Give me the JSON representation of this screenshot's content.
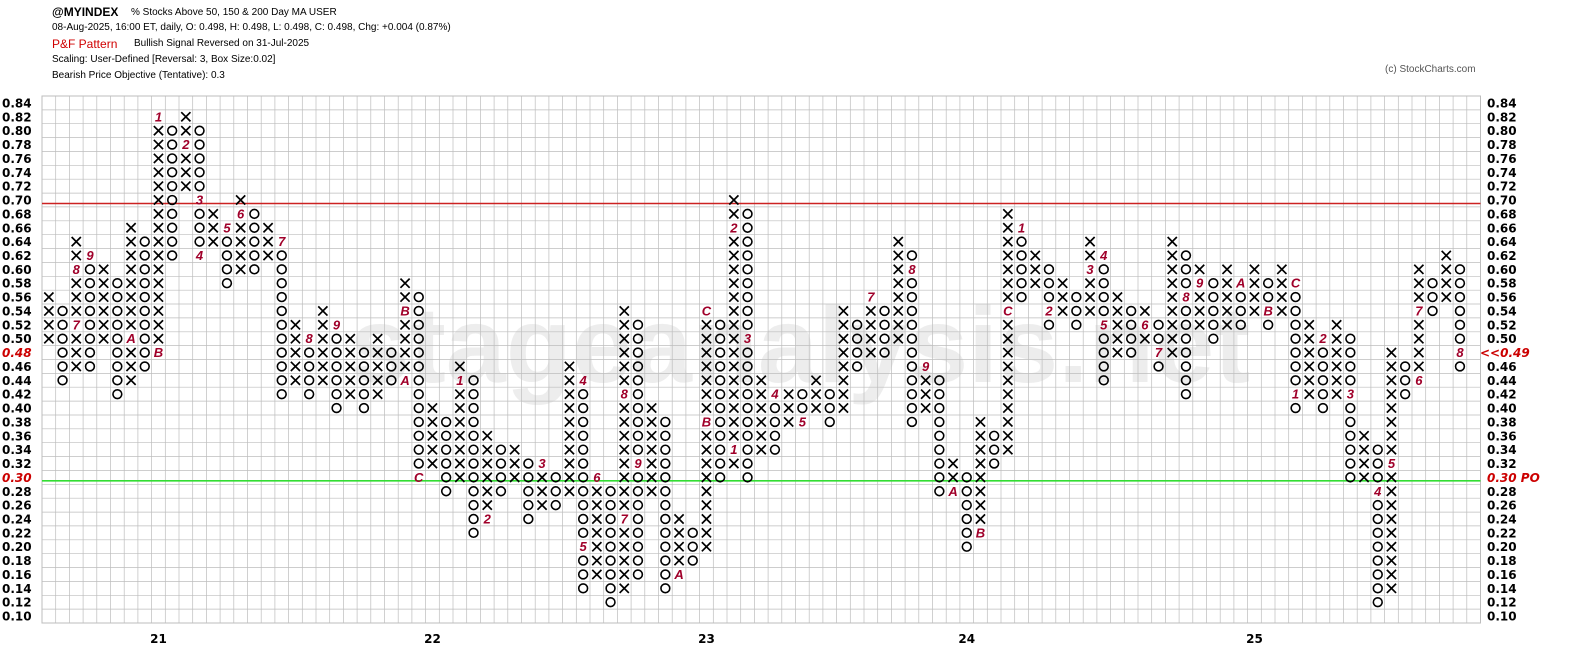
{
  "header": {
    "symbol": "@MYINDEX",
    "description": "% Stocks Above 50, 150 & 200 Day MA  USER",
    "quote": "08-Aug-2025, 16:00 ET, daily, O: 0.498, H: 0.498, L: 0.498, C: 0.498, Chg: +0.004 (0.87%)",
    "pattern_label": "P&F Pattern",
    "pattern_text": "Bullish Signal Reversed on 31-Jul-2025",
    "scaling": "Scaling: User-Defined [Reversal: 3, Box Size:0.02]",
    "objective": "Bearish Price Objective (Tentative): 0.3",
    "copyright": "(c) StockCharts.com"
  },
  "watermark": "stageanalysis.net",
  "colors": {
    "grid": "#bdbdbd",
    "symbol": "#000000",
    "month_marker": "#a0002a",
    "resistance_line": "#cc2222",
    "objective_line": "#33dd33",
    "label_red": "#cc0000"
  },
  "chart_data": {
    "type": "point-and-figure",
    "box_size": 0.02,
    "reversal": 3,
    "y_range": [
      0.1,
      0.84
    ],
    "y_ticks": [
      "0.84",
      "0.82",
      "0.80",
      "0.78",
      "0.76",
      "0.74",
      "0.72",
      "0.70",
      "0.68",
      "0.66",
      "0.64",
      "0.62",
      "0.60",
      "0.58",
      "0.56",
      "0.54",
      "0.52",
      "0.50",
      "0.48",
      "0.46",
      "0.44",
      "0.42",
      "0.40",
      "0.38",
      "0.36",
      "0.34",
      "0.32",
      "0.30",
      "0.28",
      "0.26",
      "0.24",
      "0.22",
      "0.20",
      "0.18",
      "0.16",
      "0.14",
      "0.12",
      "0.10"
    ],
    "x_labels": [
      {
        "label": "21",
        "col": 8
      },
      {
        "label": "22",
        "col": 28
      },
      {
        "label": "23",
        "col": 48
      },
      {
        "label": "24",
        "col": 67
      },
      {
        "label": "25",
        "col": 88
      }
    ],
    "last_price_label_left": "0.48",
    "last_price_label_right": "<<0.49",
    "objective_label_left": "0.30",
    "objective_label_right": "0.30 PO",
    "lines": [
      {
        "name": "resistance",
        "y": 0.695
      },
      {
        "name": "price objective",
        "y": 0.295
      }
    ],
    "columns": [
      {
        "col": 0,
        "type": "X",
        "lo": 0.5,
        "hi": 0.56
      },
      {
        "col": 1,
        "type": "O",
        "lo": 0.44,
        "hi": 0.54
      },
      {
        "col": 2,
        "type": "X",
        "lo": 0.46,
        "hi": 0.64,
        "marks": [
          {
            "v": 0.6,
            "m": "8"
          },
          {
            "v": 0.52,
            "m": "7"
          }
        ]
      },
      {
        "col": 3,
        "type": "O",
        "lo": 0.46,
        "hi": 0.62,
        "marks": [
          {
            "v": 0.62,
            "m": "9"
          }
        ]
      },
      {
        "col": 4,
        "type": "X",
        "lo": 0.5,
        "hi": 0.6
      },
      {
        "col": 5,
        "type": "O",
        "lo": 0.42,
        "hi": 0.58
      },
      {
        "col": 6,
        "type": "X",
        "lo": 0.44,
        "hi": 0.66,
        "marks": [
          {
            "v": 0.5,
            "m": "A"
          }
        ]
      },
      {
        "col": 7,
        "type": "O",
        "lo": 0.46,
        "hi": 0.64
      },
      {
        "col": 8,
        "type": "X",
        "lo": 0.48,
        "hi": 0.82,
        "marks": [
          {
            "v": 0.82,
            "m": "1"
          },
          {
            "v": 0.48,
            "m": "B"
          }
        ]
      },
      {
        "col": 9,
        "type": "O",
        "lo": 0.62,
        "hi": 0.8
      },
      {
        "col": 10,
        "type": "X",
        "lo": 0.72,
        "hi": 0.82,
        "marks": [
          {
            "v": 0.78,
            "m": "2"
          }
        ]
      },
      {
        "col": 11,
        "type": "O",
        "lo": 0.62,
        "hi": 0.8,
        "marks": [
          {
            "v": 0.7,
            "m": "3"
          },
          {
            "v": 0.62,
            "m": "4"
          }
        ]
      },
      {
        "col": 12,
        "type": "X",
        "lo": 0.64,
        "hi": 0.68
      },
      {
        "col": 13,
        "type": "O",
        "lo": 0.58,
        "hi": 0.66,
        "marks": [
          {
            "v": 0.66,
            "m": "5"
          }
        ]
      },
      {
        "col": 14,
        "type": "X",
        "lo": 0.6,
        "hi": 0.7,
        "marks": [
          {
            "v": 0.68,
            "m": "6"
          }
        ]
      },
      {
        "col": 15,
        "type": "O",
        "lo": 0.6,
        "hi": 0.68
      },
      {
        "col": 16,
        "type": "X",
        "lo": 0.62,
        "hi": 0.66
      },
      {
        "col": 17,
        "type": "O",
        "lo": 0.42,
        "hi": 0.64,
        "marks": [
          {
            "v": 0.64,
            "m": "7"
          }
        ]
      },
      {
        "col": 18,
        "type": "X",
        "lo": 0.44,
        "hi": 0.52
      },
      {
        "col": 19,
        "type": "O",
        "lo": 0.42,
        "hi": 0.5,
        "marks": [
          {
            "v": 0.5,
            "m": "8"
          }
        ]
      },
      {
        "col": 20,
        "type": "X",
        "lo": 0.44,
        "hi": 0.54
      },
      {
        "col": 21,
        "type": "O",
        "lo": 0.4,
        "hi": 0.52,
        "marks": [
          {
            "v": 0.52,
            "m": "9"
          }
        ]
      },
      {
        "col": 22,
        "type": "X",
        "lo": 0.42,
        "hi": 0.5
      },
      {
        "col": 23,
        "type": "O",
        "lo": 0.4,
        "hi": 0.48
      },
      {
        "col": 24,
        "type": "X",
        "lo": 0.42,
        "hi": 0.5
      },
      {
        "col": 25,
        "type": "O",
        "lo": 0.44,
        "hi": 0.48
      },
      {
        "col": 26,
        "type": "X",
        "lo": 0.44,
        "hi": 0.58,
        "marks": [
          {
            "v": 0.54,
            "m": "B"
          },
          {
            "v": 0.44,
            "m": "A"
          }
        ]
      },
      {
        "col": 27,
        "type": "O",
        "lo": 0.3,
        "hi": 0.56,
        "marks": [
          {
            "v": 0.3,
            "m": "C"
          }
        ]
      },
      {
        "col": 28,
        "type": "X",
        "lo": 0.32,
        "hi": 0.4
      },
      {
        "col": 29,
        "type": "O",
        "lo": 0.28,
        "hi": 0.38
      },
      {
        "col": 30,
        "type": "X",
        "lo": 0.3,
        "hi": 0.46,
        "marks": [
          {
            "v": 0.44,
            "m": "1"
          }
        ]
      },
      {
        "col": 31,
        "type": "O",
        "lo": 0.22,
        "hi": 0.44
      },
      {
        "col": 32,
        "type": "X",
        "lo": 0.24,
        "hi": 0.36,
        "marks": [
          {
            "v": 0.24,
            "m": "2"
          }
        ]
      },
      {
        "col": 33,
        "type": "O",
        "lo": 0.28,
        "hi": 0.34
      },
      {
        "col": 34,
        "type": "X",
        "lo": 0.3,
        "hi": 0.34
      },
      {
        "col": 35,
        "type": "O",
        "lo": 0.24,
        "hi": 0.32
      },
      {
        "col": 36,
        "type": "X",
        "lo": 0.26,
        "hi": 0.32,
        "marks": [
          {
            "v": 0.32,
            "m": "3"
          }
        ]
      },
      {
        "col": 37,
        "type": "O",
        "lo": 0.26,
        "hi": 0.3
      },
      {
        "col": 38,
        "type": "X",
        "lo": 0.28,
        "hi": 0.46
      },
      {
        "col": 39,
        "type": "O",
        "lo": 0.14,
        "hi": 0.44,
        "marks": [
          {
            "v": 0.44,
            "m": "4"
          },
          {
            "v": 0.2,
            "m": "5"
          }
        ]
      },
      {
        "col": 40,
        "type": "X",
        "lo": 0.16,
        "hi": 0.3,
        "marks": [
          {
            "v": 0.3,
            "m": "6"
          }
        ]
      },
      {
        "col": 41,
        "type": "O",
        "lo": 0.12,
        "hi": 0.28
      },
      {
        "col": 42,
        "type": "X",
        "lo": 0.14,
        "hi": 0.54,
        "marks": [
          {
            "v": 0.42,
            "m": "8"
          },
          {
            "v": 0.24,
            "m": "7"
          }
        ]
      },
      {
        "col": 43,
        "type": "O",
        "lo": 0.16,
        "hi": 0.52,
        "marks": [
          {
            "v": 0.32,
            "m": "9"
          }
        ]
      },
      {
        "col": 44,
        "type": "X",
        "lo": 0.28,
        "hi": 0.4
      },
      {
        "col": 45,
        "type": "O",
        "lo": 0.14,
        "hi": 0.38
      },
      {
        "col": 46,
        "type": "X",
        "lo": 0.16,
        "hi": 0.24,
        "marks": [
          {
            "v": 0.16,
            "m": "A"
          }
        ]
      },
      {
        "col": 47,
        "type": "O",
        "lo": 0.18,
        "hi": 0.22
      },
      {
        "col": 48,
        "type": "X",
        "lo": 0.2,
        "hi": 0.54,
        "marks": [
          {
            "v": 0.54,
            "m": "C"
          },
          {
            "v": 0.38,
            "m": "B"
          }
        ]
      },
      {
        "col": 49,
        "type": "O",
        "lo": 0.3,
        "hi": 0.52
      },
      {
        "col": 50,
        "type": "X",
        "lo": 0.32,
        "hi": 0.7,
        "marks": [
          {
            "v": 0.66,
            "m": "2"
          },
          {
            "v": 0.34,
            "m": "1"
          }
        ]
      },
      {
        "col": 51,
        "type": "O",
        "lo": 0.3,
        "hi": 0.68,
        "marks": [
          {
            "v": 0.5,
            "m": "3"
          }
        ]
      },
      {
        "col": 52,
        "type": "X",
        "lo": 0.34,
        "hi": 0.44
      },
      {
        "col": 53,
        "type": "O",
        "lo": 0.34,
        "hi": 0.42,
        "marks": [
          {
            "v": 0.42,
            "m": "4"
          }
        ]
      },
      {
        "col": 54,
        "type": "X",
        "lo": 0.38,
        "hi": 0.42
      },
      {
        "col": 55,
        "type": "O",
        "lo": 0.38,
        "hi": 0.42,
        "marks": [
          {
            "v": 0.38,
            "m": "5"
          }
        ]
      },
      {
        "col": 56,
        "type": "X",
        "lo": 0.4,
        "hi": 0.44
      },
      {
        "col": 57,
        "type": "O",
        "lo": 0.38,
        "hi": 0.42
      },
      {
        "col": 58,
        "type": "X",
        "lo": 0.4,
        "hi": 0.54
      },
      {
        "col": 59,
        "type": "O",
        "lo": 0.46,
        "hi": 0.52
      },
      {
        "col": 60,
        "type": "X",
        "lo": 0.48,
        "hi": 0.56,
        "marks": [
          {
            "v": 0.56,
            "m": "7"
          }
        ]
      },
      {
        "col": 61,
        "type": "O",
        "lo": 0.48,
        "hi": 0.54
      },
      {
        "col": 62,
        "type": "X",
        "lo": 0.5,
        "hi": 0.64
      },
      {
        "col": 63,
        "type": "O",
        "lo": 0.38,
        "hi": 0.62,
        "marks": [
          {
            "v": 0.6,
            "m": "8"
          }
        ]
      },
      {
        "col": 64,
        "type": "X",
        "lo": 0.4,
        "hi": 0.46,
        "marks": [
          {
            "v": 0.46,
            "m": "9"
          }
        ]
      },
      {
        "col": 65,
        "type": "O",
        "lo": 0.28,
        "hi": 0.44
      },
      {
        "col": 66,
        "type": "X",
        "lo": 0.28,
        "hi": 0.32,
        "marks": [
          {
            "v": 0.28,
            "m": "A"
          }
        ]
      },
      {
        "col": 67,
        "type": "O",
        "lo": 0.2,
        "hi": 0.3
      },
      {
        "col": 68,
        "type": "X",
        "lo": 0.22,
        "hi": 0.38,
        "marks": [
          {
            "v": 0.22,
            "m": "B"
          }
        ]
      },
      {
        "col": 69,
        "type": "O",
        "lo": 0.32,
        "hi": 0.36
      },
      {
        "col": 70,
        "type": "X",
        "lo": 0.34,
        "hi": 0.68,
        "marks": [
          {
            "v": 0.54,
            "m": "C"
          }
        ]
      },
      {
        "col": 71,
        "type": "O",
        "lo": 0.56,
        "hi": 0.66,
        "marks": [
          {
            "v": 0.66,
            "m": "1"
          }
        ]
      },
      {
        "col": 72,
        "type": "X",
        "lo": 0.58,
        "hi": 0.62
      },
      {
        "col": 73,
        "type": "O",
        "lo": 0.52,
        "hi": 0.6,
        "marks": [
          {
            "v": 0.54,
            "m": "2"
          }
        ]
      },
      {
        "col": 74,
        "type": "X",
        "lo": 0.54,
        "hi": 0.58
      },
      {
        "col": 75,
        "type": "O",
        "lo": 0.52,
        "hi": 0.56
      },
      {
        "col": 76,
        "type": "X",
        "lo": 0.54,
        "hi": 0.64,
        "marks": [
          {
            "v": 0.6,
            "m": "3"
          }
        ]
      },
      {
        "col": 77,
        "type": "O",
        "lo": 0.44,
        "hi": 0.62,
        "marks": [
          {
            "v": 0.62,
            "m": "4"
          },
          {
            "v": 0.52,
            "m": "5"
          }
        ]
      },
      {
        "col": 78,
        "type": "X",
        "lo": 0.48,
        "hi": 0.56
      },
      {
        "col": 79,
        "type": "O",
        "lo": 0.48,
        "hi": 0.54
      },
      {
        "col": 80,
        "type": "X",
        "lo": 0.5,
        "hi": 0.54,
        "marks": [
          {
            "v": 0.52,
            "m": "6"
          }
        ]
      },
      {
        "col": 81,
        "type": "O",
        "lo": 0.46,
        "hi": 0.52,
        "marks": [
          {
            "v": 0.48,
            "m": "7"
          }
        ]
      },
      {
        "col": 82,
        "type": "X",
        "lo": 0.48,
        "hi": 0.64
      },
      {
        "col": 83,
        "type": "O",
        "lo": 0.42,
        "hi": 0.62,
        "marks": [
          {
            "v": 0.56,
            "m": "8"
          }
        ]
      },
      {
        "col": 84,
        "type": "X",
        "lo": 0.52,
        "hi": 0.6,
        "marks": [
          {
            "v": 0.58,
            "m": "9"
          }
        ]
      },
      {
        "col": 85,
        "type": "O",
        "lo": 0.5,
        "hi": 0.58
      },
      {
        "col": 86,
        "type": "X",
        "lo": 0.52,
        "hi": 0.6
      },
      {
        "col": 87,
        "type": "O",
        "lo": 0.52,
        "hi": 0.58,
        "marks": [
          {
            "v": 0.58,
            "m": "A"
          }
        ]
      },
      {
        "col": 88,
        "type": "X",
        "lo": 0.54,
        "hi": 0.6
      },
      {
        "col": 89,
        "type": "O",
        "lo": 0.52,
        "hi": 0.58,
        "marks": [
          {
            "v": 0.54,
            "m": "B"
          }
        ]
      },
      {
        "col": 90,
        "type": "X",
        "lo": 0.54,
        "hi": 0.6
      },
      {
        "col": 91,
        "type": "O",
        "lo": 0.4,
        "hi": 0.58,
        "marks": [
          {
            "v": 0.58,
            "m": "C"
          },
          {
            "v": 0.42,
            "m": "1"
          }
        ]
      },
      {
        "col": 92,
        "type": "X",
        "lo": 0.42,
        "hi": 0.52
      },
      {
        "col": 93,
        "type": "O",
        "lo": 0.4,
        "hi": 0.5,
        "marks": [
          {
            "v": 0.5,
            "m": "2"
          }
        ]
      },
      {
        "col": 94,
        "type": "X",
        "lo": 0.42,
        "hi": 0.52
      },
      {
        "col": 95,
        "type": "O",
        "lo": 0.3,
        "hi": 0.5,
        "marks": [
          {
            "v": 0.42,
            "m": "3"
          }
        ]
      },
      {
        "col": 96,
        "type": "X",
        "lo": 0.3,
        "hi": 0.36
      },
      {
        "col": 97,
        "type": "O",
        "lo": 0.12,
        "hi": 0.34,
        "marks": [
          {
            "v": 0.28,
            "m": "4"
          }
        ]
      },
      {
        "col": 98,
        "type": "X",
        "lo": 0.14,
        "hi": 0.48,
        "marks": [
          {
            "v": 0.32,
            "m": "5"
          }
        ]
      },
      {
        "col": 99,
        "type": "O",
        "lo": 0.42,
        "hi": 0.46
      },
      {
        "col": 100,
        "type": "X",
        "lo": 0.44,
        "hi": 0.6,
        "marks": [
          {
            "v": 0.54,
            "m": "7"
          },
          {
            "v": 0.44,
            "m": "6"
          }
        ]
      },
      {
        "col": 101,
        "type": "O",
        "lo": 0.54,
        "hi": 0.58
      },
      {
        "col": 102,
        "type": "X",
        "lo": 0.56,
        "hi": 0.62
      },
      {
        "col": 103,
        "type": "O",
        "lo": 0.46,
        "hi": 0.6,
        "marks": [
          {
            "v": 0.48,
            "m": "8"
          }
        ]
      }
    ]
  }
}
